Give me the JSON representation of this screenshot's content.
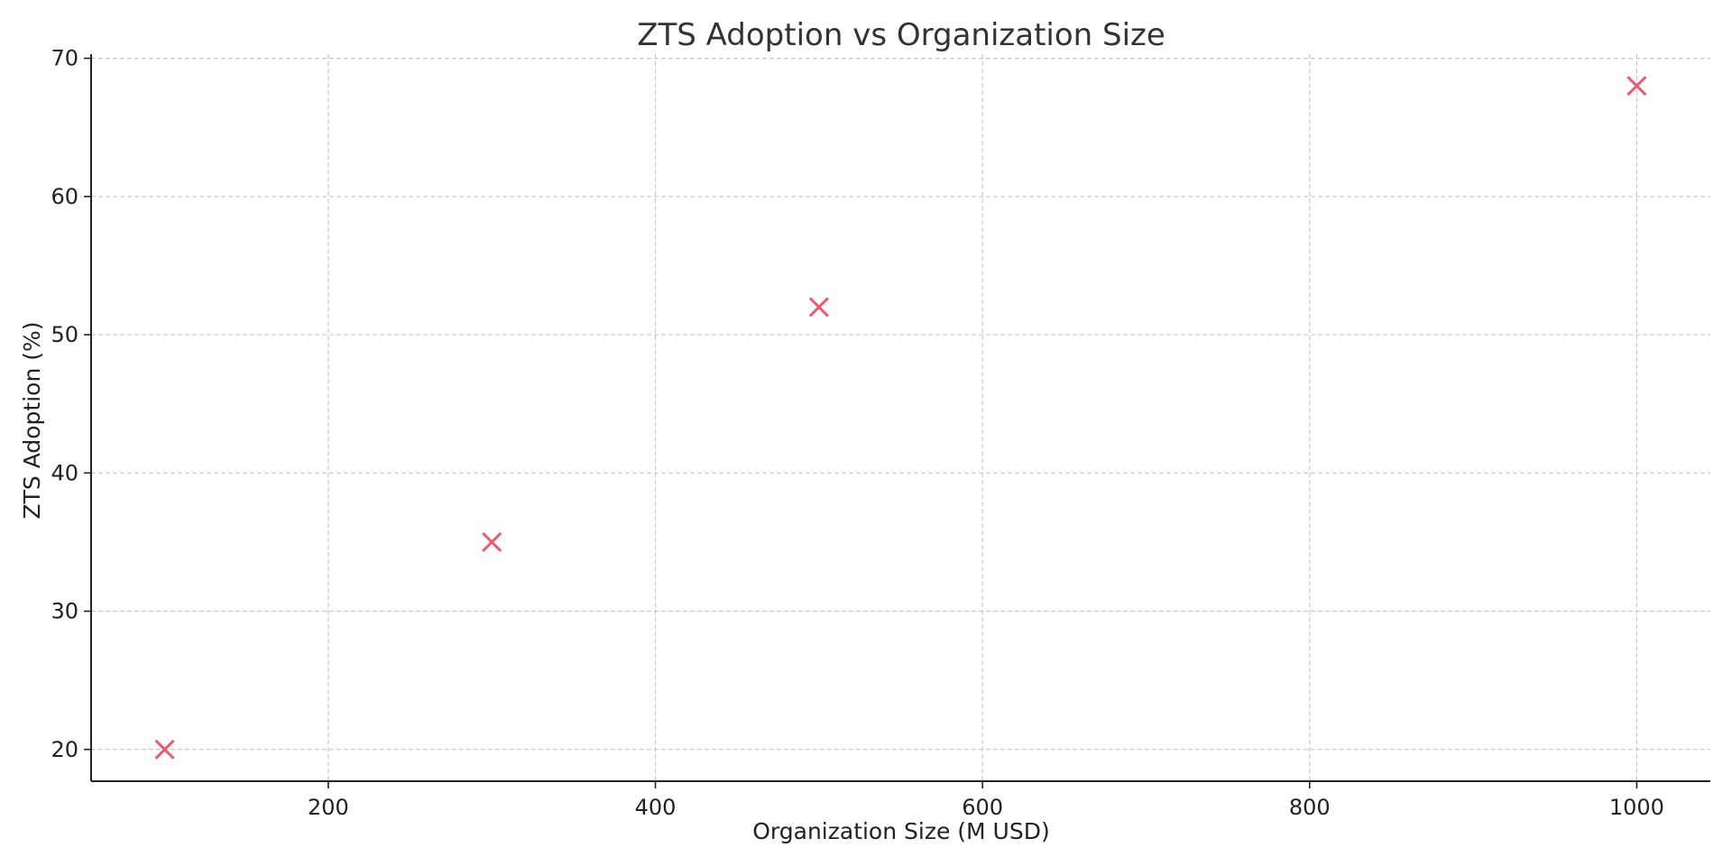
{
  "chart_data": {
    "type": "scatter",
    "title": "ZTS Adoption vs Organization Size",
    "xlabel": "Organization Size (M USD)",
    "ylabel": "ZTS Adoption (%)",
    "xlim": [
      55,
      1045
    ],
    "ylim": [
      17.7,
      70.3
    ],
    "x_ticks": [
      200,
      400,
      600,
      800,
      1000
    ],
    "y_ticks": [
      20,
      30,
      40,
      50,
      60,
      70
    ],
    "grid": true,
    "marker": "x",
    "marker_color": "#f0596b",
    "series": [
      {
        "x": [
          100,
          300,
          500,
          1000
        ],
        "y": [
          20,
          35,
          52,
          68
        ]
      }
    ]
  }
}
